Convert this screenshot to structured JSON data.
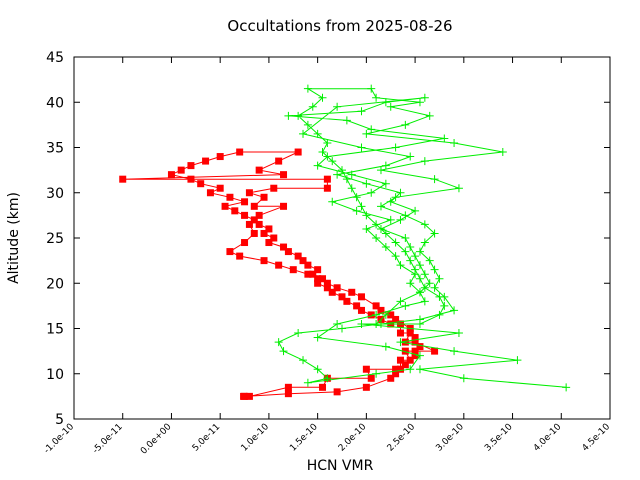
{
  "chart_data": {
    "type": "line",
    "title": "Occultations from 2025-08-26",
    "xlabel": "HCN VMR",
    "ylabel": "Altitude (km)",
    "xlim": [
      -1e-10,
      4.5e-10
    ],
    "ylim": [
      5,
      45
    ],
    "x_ticks": [
      -1e-10,
      -5e-11,
      0,
      5e-11,
      1e-10,
      1.5e-10,
      2e-10,
      2.5e-10,
      3e-10,
      3.5e-10,
      4e-10,
      4.5e-10
    ],
    "x_tick_labels": [
      "-1.0e-10",
      "-5.0e-11",
      "0.0e+00",
      "5.0e-11",
      "1.0e-10",
      "1.5e-10",
      "2.0e-10",
      "2.5e-10",
      "3.0e-10",
      "3.5e-10",
      "4.0e-10",
      "4.5e-10"
    ],
    "y_ticks": [
      5,
      10,
      15,
      20,
      25,
      30,
      35,
      40,
      45
    ],
    "y_tick_labels": [
      "5",
      "10",
      "15",
      "20",
      "25",
      "30",
      "35",
      "40",
      "45"
    ],
    "grid": false,
    "legend": "none",
    "series": [
      {
        "color": "#ff0000",
        "marker": "square",
        "points": [
          [
            7.4e-11,
            7.5
          ],
          [
            8e-11,
            7.5
          ],
          [
            1.2e-10,
            8.5
          ],
          [
            1.55e-10,
            8.5
          ],
          [
            1.6e-10,
            9.5
          ],
          [
            2.05e-10,
            9.5
          ],
          [
            2e-10,
            10.5
          ],
          [
            2.3e-10,
            10.5
          ],
          [
            2.35e-10,
            10.5
          ],
          [
            2.35e-10,
            11.5
          ],
          [
            2.45e-10,
            11.5
          ],
          [
            2.4e-10,
            12.5
          ],
          [
            2.5e-10,
            12.5
          ],
          [
            2.7e-10,
            12.5
          ],
          [
            2.5e-10,
            13.5
          ],
          [
            2.4e-10,
            13.5
          ],
          [
            2.45e-10,
            14.5
          ],
          [
            2.35e-10,
            14.5
          ],
          [
            2.35e-10,
            15.5
          ],
          [
            2.25e-10,
            15.5
          ],
          [
            2.15e-10,
            16.0
          ],
          [
            2.05e-10,
            16.5
          ],
          [
            1.95e-10,
            17.0
          ],
          [
            1.9e-10,
            17.5
          ],
          [
            1.8e-10,
            18.0
          ],
          [
            1.75e-10,
            18.5
          ],
          [
            1.65e-10,
            19.0
          ],
          [
            1.6e-10,
            19.5
          ],
          [
            1.5e-10,
            20.0
          ],
          [
            1.55e-10,
            20.5
          ],
          [
            1.45e-10,
            21.0
          ],
          [
            1.5e-10,
            21.5
          ],
          [
            1.4e-10,
            22.0
          ],
          [
            1.35e-10,
            22.5
          ],
          [
            1.3e-10,
            23.0
          ],
          [
            1.2e-10,
            23.5
          ],
          [
            1.15e-10,
            24.0
          ],
          [
            1e-10,
            24.5
          ],
          [
            1.05e-10,
            25.0
          ],
          [
            9.5e-11,
            25.5
          ],
          [
            1e-10,
            26.0
          ],
          [
            9e-11,
            26.5
          ],
          [
            8.5e-11,
            27.0
          ],
          [
            7.5e-11,
            27.5
          ],
          [
            6.5e-11,
            28.0
          ],
          [
            5.5e-11,
            28.5
          ],
          [
            7.5e-11,
            29.0
          ],
          [
            6e-11,
            29.5
          ],
          [
            4e-11,
            30.0
          ],
          [
            5e-11,
            30.5
          ],
          [
            3e-11,
            31.0
          ],
          [
            2e-11,
            31.5
          ],
          [
            0.0,
            32.0
          ],
          [
            1e-11,
            32.5
          ],
          [
            2e-11,
            33.0
          ],
          [
            3.5e-11,
            33.5
          ],
          [
            5e-11,
            34.0
          ],
          [
            7e-11,
            34.5
          ],
          [
            1.3e-10,
            34.5
          ],
          [
            1.1e-10,
            33.5
          ],
          [
            9e-11,
            32.5
          ],
          [
            1.15e-10,
            32.0
          ],
          [
            -5e-11,
            31.5
          ],
          [
            1.6e-10,
            31.5
          ],
          [
            1.6e-10,
            30.5
          ],
          [
            1.05e-10,
            30.5
          ],
          [
            8e-11,
            30.0
          ],
          [
            9.5e-11,
            29.5
          ],
          [
            8.5e-11,
            28.5
          ],
          [
            1.15e-10,
            28.5
          ],
          [
            9e-11,
            27.5
          ],
          [
            8e-11,
            26.5
          ],
          [
            8.5e-11,
            25.5
          ],
          [
            7.5e-11,
            24.5
          ],
          [
            6e-11,
            23.5
          ],
          [
            7e-11,
            23.0
          ],
          [
            9.5e-11,
            22.5
          ],
          [
            1.1e-10,
            22.0
          ],
          [
            1.25e-10,
            21.5
          ],
          [
            1.4e-10,
            21.0
          ],
          [
            1.5e-10,
            20.5
          ],
          [
            1.6e-10,
            20.0
          ],
          [
            1.7e-10,
            19.5
          ],
          [
            1.85e-10,
            19.0
          ],
          [
            1.95e-10,
            18.5
          ],
          [
            2.1e-10,
            17.5
          ],
          [
            2.15e-10,
            17.0
          ],
          [
            2.25e-10,
            16.5
          ],
          [
            2.3e-10,
            16.0
          ],
          [
            2.45e-10,
            15.0
          ],
          [
            2.5e-10,
            14.0
          ],
          [
            2.55e-10,
            13.0
          ],
          [
            2.5e-10,
            12.0
          ],
          [
            2.4e-10,
            11.0
          ],
          [
            2.3e-10,
            10.0
          ],
          [
            2.25e-10,
            9.5
          ],
          [
            2e-10,
            8.5
          ],
          [
            1.7e-10,
            8.0
          ],
          [
            1.2e-10,
            7.8
          ],
          [
            7.5e-11,
            7.5
          ]
        ]
      },
      {
        "color": "#00ee00",
        "marker": "plus",
        "points": [
          [
            4.05e-10,
            8.5
          ],
          [
            3e-10,
            9.5
          ],
          [
            2.55e-10,
            10.5
          ],
          [
            3.55e-10,
            11.5
          ],
          [
            2.9e-10,
            12.5
          ],
          [
            2.35e-10,
            13.5
          ],
          [
            2.95e-10,
            14.5
          ],
          [
            1.95e-10,
            15.5
          ],
          [
            2.15e-10,
            15.5
          ],
          [
            2.55e-10,
            15.5
          ],
          [
            2.75e-10,
            16.5
          ],
          [
            2.8e-10,
            17.5
          ],
          [
            2.75e-10,
            18.5
          ],
          [
            2.6e-10,
            19.5
          ],
          [
            2.55e-10,
            20.5
          ],
          [
            2.5e-10,
            21.5
          ],
          [
            2.45e-10,
            22.5
          ],
          [
            2.4e-10,
            23.5
          ],
          [
            2.3e-10,
            24.5
          ],
          [
            2.2e-10,
            25.5
          ],
          [
            2.1e-10,
            26.5
          ],
          [
            2e-10,
            27.5
          ],
          [
            1.95e-10,
            28.5
          ],
          [
            1.9e-10,
            29.5
          ],
          [
            1.85e-10,
            30.5
          ],
          [
            1.8e-10,
            31.5
          ],
          [
            1.75e-10,
            32.5
          ],
          [
            1.65e-10,
            33.5
          ],
          [
            1.55e-10,
            34.5
          ],
          [
            1.6e-10,
            35.5
          ],
          [
            1.5e-10,
            36.5
          ],
          [
            1.4e-10,
            37.5
          ],
          [
            1.3e-10,
            38.5
          ],
          [
            1.45e-10,
            39.5
          ],
          [
            1.55e-10,
            40.5
          ],
          [
            1.4e-10,
            41.5
          ],
          [
            2.05e-10,
            41.5
          ],
          [
            2.1e-10,
            40.5
          ],
          [
            2.55e-10,
            40.0
          ],
          [
            2.25e-10,
            39.5
          ],
          [
            2.65e-10,
            38.5
          ],
          [
            2.4e-10,
            37.5
          ],
          [
            2e-10,
            36.5
          ],
          [
            2.9e-10,
            35.5
          ],
          [
            3.4e-10,
            34.5
          ],
          [
            2.6e-10,
            33.5
          ],
          [
            2.15e-10,
            32.5
          ],
          [
            2.7e-10,
            31.5
          ],
          [
            2.95e-10,
            30.5
          ],
          [
            2.3e-10,
            29.5
          ],
          [
            2.15e-10,
            28.5
          ],
          [
            2.4e-10,
            27.5
          ],
          [
            2.6e-10,
            26.5
          ],
          [
            2.7e-10,
            25.5
          ],
          [
            2.6e-10,
            24.5
          ],
          [
            2.55e-10,
            23.5
          ],
          [
            2.65e-10,
            22.5
          ],
          [
            2.7e-10,
            21.5
          ],
          [
            2.75e-10,
            20.5
          ],
          [
            2.7e-10,
            19.5
          ],
          [
            2.8e-10,
            18.5
          ],
          [
            2.9e-10,
            17.0
          ],
          [
            2.55e-10,
            16.0
          ],
          [
            1.75e-10,
            15.0
          ],
          [
            1.3e-10,
            14.5
          ],
          [
            1.1e-10,
            13.5
          ],
          [
            1.15e-10,
            12.5
          ],
          [
            1.35e-10,
            11.5
          ],
          [
            1.5e-10,
            10.5
          ],
          [
            1.6e-10,
            9.5
          ],
          [
            1.4e-10,
            9.0
          ],
          [
            2.1e-10,
            10.0
          ],
          [
            2.45e-10,
            10.5
          ],
          [
            2.55e-10,
            12.0
          ],
          [
            2.2e-10,
            13.0
          ],
          [
            1.5e-10,
            14.0
          ],
          [
            1.7e-10,
            15.5
          ],
          [
            2.1e-10,
            16.5
          ],
          [
            2.4e-10,
            17.5
          ],
          [
            2.6e-10,
            18.0
          ],
          [
            2.55e-10,
            19.0
          ],
          [
            2.45e-10,
            20.0
          ],
          [
            2.5e-10,
            21.0
          ],
          [
            2.35e-10,
            22.0
          ],
          [
            2.3e-10,
            23.0
          ],
          [
            2.2e-10,
            24.0
          ],
          [
            2.1e-10,
            25.0
          ],
          [
            2e-10,
            26.0
          ],
          [
            2.25e-10,
            27.0
          ],
          [
            1.9e-10,
            28.0
          ],
          [
            1.65e-10,
            29.0
          ],
          [
            2.05e-10,
            30.0
          ],
          [
            2.2e-10,
            31.0
          ],
          [
            1.85e-10,
            32.0
          ],
          [
            1.5e-10,
            33.0
          ],
          [
            1.6e-10,
            34.0
          ],
          [
            2.3e-10,
            35.0
          ],
          [
            2.8e-10,
            36.0
          ],
          [
            2.05e-10,
            37.0
          ],
          [
            1.8e-10,
            38.0
          ],
          [
            1.2e-10,
            38.5
          ],
          [
            1.95e-10,
            39.0
          ],
          [
            2.2e-10,
            40.0
          ],
          [
            2.6e-10,
            40.5
          ],
          [
            1.7e-10,
            39.5
          ],
          [
            1.35e-10,
            36.5
          ],
          [
            1.95e-10,
            35.0
          ],
          [
            2.45e-10,
            34.0
          ],
          [
            2.2e-10,
            33.0
          ],
          [
            1.7e-10,
            32.0
          ],
          [
            2e-10,
            31.0
          ],
          [
            2.35e-10,
            30.0
          ],
          [
            2.25e-10,
            29.0
          ],
          [
            2.5e-10,
            28.0
          ],
          [
            2.35e-10,
            27.0
          ],
          [
            2.15e-10,
            26.0
          ],
          [
            2.4e-10,
            25.0
          ],
          [
            2.45e-10,
            24.0
          ],
          [
            2.5e-10,
            23.0
          ],
          [
            2.55e-10,
            22.0
          ],
          [
            2.6e-10,
            21.0
          ],
          [
            2.65e-10,
            20.0
          ],
          [
            2.55e-10,
            19.0
          ],
          [
            2.35e-10,
            18.0
          ],
          [
            2.2e-10,
            16.5
          ],
          [
            2.1e-10,
            15.5
          ]
        ]
      }
    ]
  }
}
